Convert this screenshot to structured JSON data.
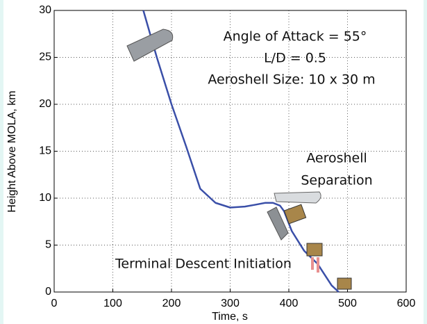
{
  "chart_data": {
    "type": "line",
    "xlabel": "Time, s",
    "ylabel": "Height Above MOLA, km",
    "x": [
      152,
      175,
      200,
      225,
      249,
      275,
      300,
      325,
      343,
      360,
      373,
      385,
      392,
      405,
      426,
      449,
      473,
      485
    ],
    "series": [
      {
        "color": "#3a4fa8",
        "values": [
          30,
          25,
          20,
          15.5,
          11,
          9.5,
          9,
          9.1,
          9.3,
          9.5,
          9.5,
          9.2,
          8.6,
          6.5,
          4.4,
          3,
          0.7,
          0
        ]
      }
    ],
    "xlim": [
      0,
      600
    ],
    "ylim": [
      0,
      30
    ],
    "xticks": [
      0,
      100,
      200,
      300,
      400,
      500,
      600
    ],
    "yticks": [
      0,
      5,
      10,
      15,
      20,
      25,
      30
    ],
    "grid": true,
    "annotations": [
      "Angle of Attack = 55°",
      "L/D = 0.5",
      "Aeroshell Size: 10 x 30 m",
      "Aeroshell",
      "Separation",
      "Terminal Descent Initiation"
    ]
  }
}
